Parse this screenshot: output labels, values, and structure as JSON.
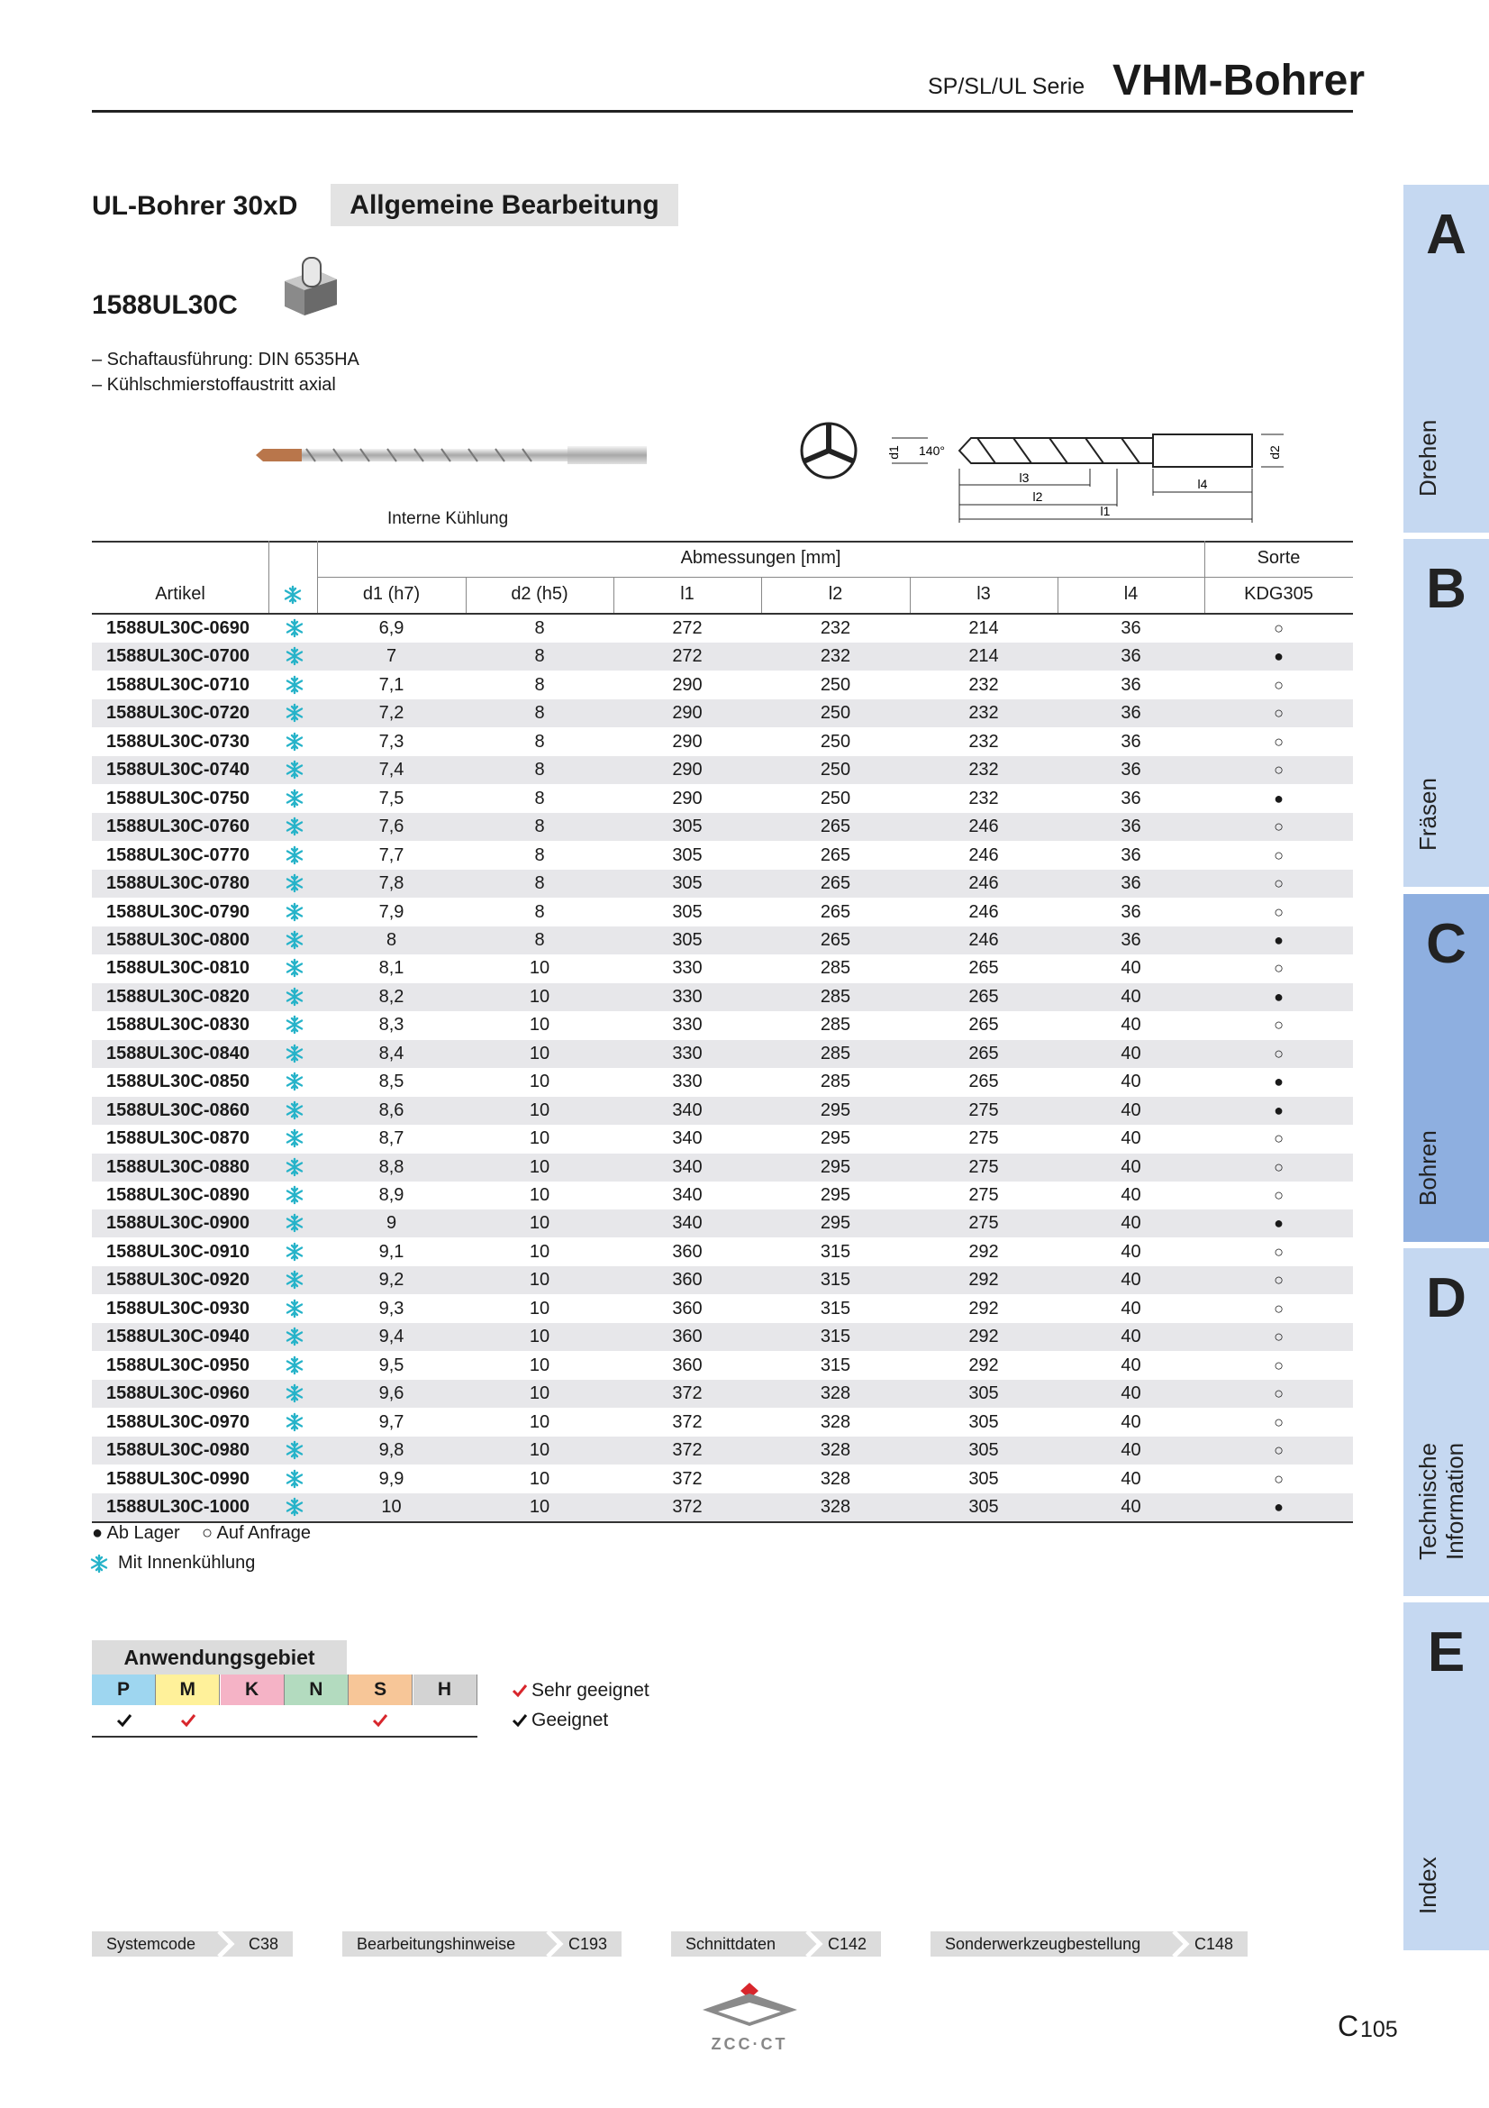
{
  "header": {
    "series": "SP/SL/UL Serie",
    "title": "VHM-Bohrer"
  },
  "product": {
    "title": "UL-Bohrer 30xD",
    "category": "Allgemeine Bearbeitung",
    "code": "1588UL30C",
    "features": [
      "– Schaftausführung: DIN 6535HA",
      "– Kühlschmierstoffaustritt axial"
    ],
    "image_caption": "Interne Kühlung"
  },
  "diagram": {
    "angle": "140°",
    "d1": "d1",
    "d2": "d2",
    "l1": "l1",
    "l2": "l2",
    "l3": "l3",
    "l4": "l4"
  },
  "table": {
    "group_header": "Abmessungen [mm]",
    "grade_header": "Sorte",
    "columns": [
      "Artikel",
      "d1 (h7)",
      "d2 (h5)",
      "l1",
      "l2",
      "l3",
      "l4",
      "KDG305"
    ],
    "rows": [
      [
        "1588UL30C-0690",
        "6,9",
        "8",
        "272",
        "232",
        "214",
        "36",
        "○"
      ],
      [
        "1588UL30C-0700",
        "7",
        "8",
        "272",
        "232",
        "214",
        "36",
        "●"
      ],
      [
        "1588UL30C-0710",
        "7,1",
        "8",
        "290",
        "250",
        "232",
        "36",
        "○"
      ],
      [
        "1588UL30C-0720",
        "7,2",
        "8",
        "290",
        "250",
        "232",
        "36",
        "○"
      ],
      [
        "1588UL30C-0730",
        "7,3",
        "8",
        "290",
        "250",
        "232",
        "36",
        "○"
      ],
      [
        "1588UL30C-0740",
        "7,4",
        "8",
        "290",
        "250",
        "232",
        "36",
        "○"
      ],
      [
        "1588UL30C-0750",
        "7,5",
        "8",
        "290",
        "250",
        "232",
        "36",
        "●"
      ],
      [
        "1588UL30C-0760",
        "7,6",
        "8",
        "305",
        "265",
        "246",
        "36",
        "○"
      ],
      [
        "1588UL30C-0770",
        "7,7",
        "8",
        "305",
        "265",
        "246",
        "36",
        "○"
      ],
      [
        "1588UL30C-0780",
        "7,8",
        "8",
        "305",
        "265",
        "246",
        "36",
        "○"
      ],
      [
        "1588UL30C-0790",
        "7,9",
        "8",
        "305",
        "265",
        "246",
        "36",
        "○"
      ],
      [
        "1588UL30C-0800",
        "8",
        "8",
        "305",
        "265",
        "246",
        "36",
        "●"
      ],
      [
        "1588UL30C-0810",
        "8,1",
        "10",
        "330",
        "285",
        "265",
        "40",
        "○"
      ],
      [
        "1588UL30C-0820",
        "8,2",
        "10",
        "330",
        "285",
        "265",
        "40",
        "●"
      ],
      [
        "1588UL30C-0830",
        "8,3",
        "10",
        "330",
        "285",
        "265",
        "40",
        "○"
      ],
      [
        "1588UL30C-0840",
        "8,4",
        "10",
        "330",
        "285",
        "265",
        "40",
        "○"
      ],
      [
        "1588UL30C-0850",
        "8,5",
        "10",
        "330",
        "285",
        "265",
        "40",
        "●"
      ],
      [
        "1588UL30C-0860",
        "8,6",
        "10",
        "340",
        "295",
        "275",
        "40",
        "●"
      ],
      [
        "1588UL30C-0870",
        "8,7",
        "10",
        "340",
        "295",
        "275",
        "40",
        "○"
      ],
      [
        "1588UL30C-0880",
        "8,8",
        "10",
        "340",
        "295",
        "275",
        "40",
        "○"
      ],
      [
        "1588UL30C-0890",
        "8,9",
        "10",
        "340",
        "295",
        "275",
        "40",
        "○"
      ],
      [
        "1588UL30C-0900",
        "9",
        "10",
        "340",
        "295",
        "275",
        "40",
        "●"
      ],
      [
        "1588UL30C-0910",
        "9,1",
        "10",
        "360",
        "315",
        "292",
        "40",
        "○"
      ],
      [
        "1588UL30C-0920",
        "9,2",
        "10",
        "360",
        "315",
        "292",
        "40",
        "○"
      ],
      [
        "1588UL30C-0930",
        "9,3",
        "10",
        "360",
        "315",
        "292",
        "40",
        "○"
      ],
      [
        "1588UL30C-0940",
        "9,4",
        "10",
        "360",
        "315",
        "292",
        "40",
        "○"
      ],
      [
        "1588UL30C-0950",
        "9,5",
        "10",
        "360",
        "315",
        "292",
        "40",
        "○"
      ],
      [
        "1588UL30C-0960",
        "9,6",
        "10",
        "372",
        "328",
        "305",
        "40",
        "○"
      ],
      [
        "1588UL30C-0970",
        "9,7",
        "10",
        "372",
        "328",
        "305",
        "40",
        "○"
      ],
      [
        "1588UL30C-0980",
        "9,8",
        "10",
        "372",
        "328",
        "305",
        "40",
        "○"
      ],
      [
        "1588UL30C-0990",
        "9,9",
        "10",
        "372",
        "328",
        "305",
        "40",
        "○"
      ],
      [
        "1588UL30C-1000",
        "10",
        "10",
        "372",
        "328",
        "305",
        "40",
        "●"
      ]
    ]
  },
  "legend": {
    "in_stock": "● Ab Lager",
    "on_request": "○ Auf Anfrage",
    "coolant": "Mit Innenkühlung"
  },
  "application": {
    "title": "Anwendungsgebiet",
    "groups": [
      "P",
      "M",
      "K",
      "N",
      "S",
      "H"
    ],
    "very_suitable": "Sehr geeignet",
    "suitable": "Geeignet"
  },
  "footer": {
    "links": [
      {
        "label": "Systemcode",
        "page": "C38"
      },
      {
        "label": "Bearbeitungshinweise",
        "page": "C193"
      },
      {
        "label": "Schnittdaten",
        "page": "C142"
      },
      {
        "label": "Sonderwerkzeugbestellung",
        "page": "C148"
      }
    ],
    "section": "C",
    "page_number": "105",
    "logo_text": "ZCC·CT"
  },
  "tabs": [
    {
      "letter": "A",
      "label": "Drehen"
    },
    {
      "letter": "B",
      "label": "Fräsen"
    },
    {
      "letter": "C",
      "label": "Bohren"
    },
    {
      "letter": "D",
      "label": "Technische Information"
    },
    {
      "letter": "E",
      "label": "Index"
    }
  ]
}
